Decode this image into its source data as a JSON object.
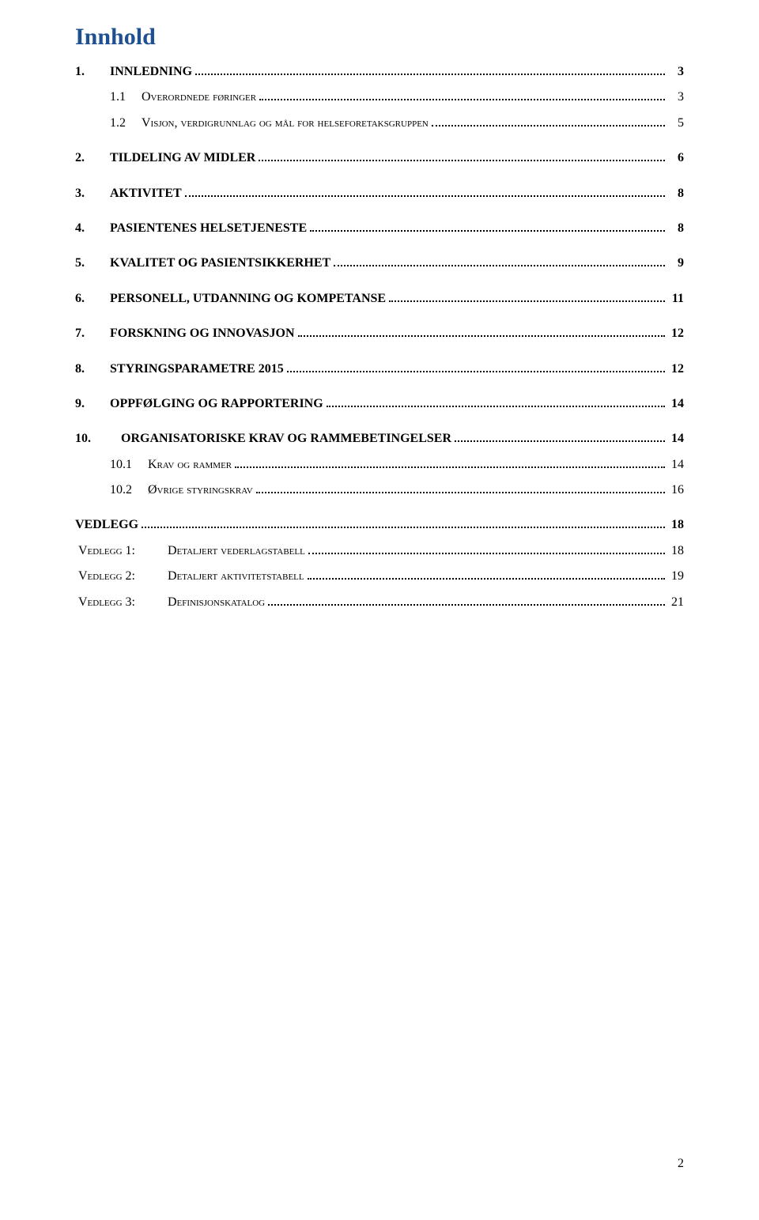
{
  "title": "Innhold",
  "pageNumber": "2",
  "entries": [
    {
      "type": "main",
      "num": "1.",
      "label": "INNLEDNING",
      "page": "3",
      "bold": true
    },
    {
      "type": "sub1",
      "num": "1.1",
      "label": "Overordnede føringer",
      "page": "3",
      "smallcaps": true
    },
    {
      "type": "sub1",
      "num": "1.2",
      "label": "Visjon, verdigrunnlag og mål for helseforetaksgruppen",
      "page": "5",
      "smallcaps": true
    },
    {
      "type": "spacer"
    },
    {
      "type": "main",
      "num": "2.",
      "label": "TILDELING AV MIDLER",
      "page": "6",
      "bold": true
    },
    {
      "type": "spacer"
    },
    {
      "type": "main",
      "num": "3.",
      "label": "AKTIVITET",
      "page": "8",
      "bold": true
    },
    {
      "type": "spacer"
    },
    {
      "type": "main",
      "num": "4.",
      "label": "PASIENTENES HELSETJENESTE",
      "page": "8",
      "bold": true
    },
    {
      "type": "spacer"
    },
    {
      "type": "main",
      "num": "5.",
      "label": "KVALITET OG PASIENTSIKKERHET",
      "page": "9",
      "bold": true
    },
    {
      "type": "spacer"
    },
    {
      "type": "main",
      "num": "6.",
      "label": "PERSONELL, UTDANNING OG KOMPETANSE",
      "page": "11",
      "bold": true
    },
    {
      "type": "spacer"
    },
    {
      "type": "main",
      "num": "7.",
      "label": "FORSKNING OG INNOVASJON",
      "page": "12",
      "bold": true
    },
    {
      "type": "spacer"
    },
    {
      "type": "main",
      "num": "8.",
      "label": "STYRINGSPARAMETRE 2015",
      "page": "12",
      "bold": true
    },
    {
      "type": "spacer"
    },
    {
      "type": "main",
      "num": "9.",
      "label": "OPPFØLGING OG RAPPORTERING",
      "page": "14",
      "bold": true
    },
    {
      "type": "spacer"
    },
    {
      "type": "main",
      "num": "10.",
      "label": "ORGANISATORISKE KRAV OG RAMMEBETINGELSER",
      "page": "14",
      "bold": true,
      "numClass": "indent-10"
    },
    {
      "type": "sub10",
      "num": "10.1",
      "label": "Krav og rammer",
      "page": "14",
      "smallcaps": true
    },
    {
      "type": "sub10",
      "num": "10.2",
      "label": "Øvrige styringskrav",
      "page": "16",
      "smallcaps": true
    },
    {
      "type": "spacer"
    },
    {
      "type": "vedlegg-main",
      "num": "",
      "label": "VEDLEGG",
      "page": "18",
      "bold": true
    },
    {
      "type": "vedlegg-sub",
      "num": "Vedlegg 1:",
      "label": "Detaljert vederlagstabell",
      "page": "18",
      "smallcaps": true
    },
    {
      "type": "vedlegg-sub",
      "num": "Vedlegg 2:",
      "label": "Detaljert aktivitetstabell",
      "page": "19",
      "smallcaps": true
    },
    {
      "type": "vedlegg-sub",
      "num": "Vedlegg 3:",
      "label": "Definisjonskatalog",
      "page": "21",
      "smallcaps": true
    }
  ]
}
